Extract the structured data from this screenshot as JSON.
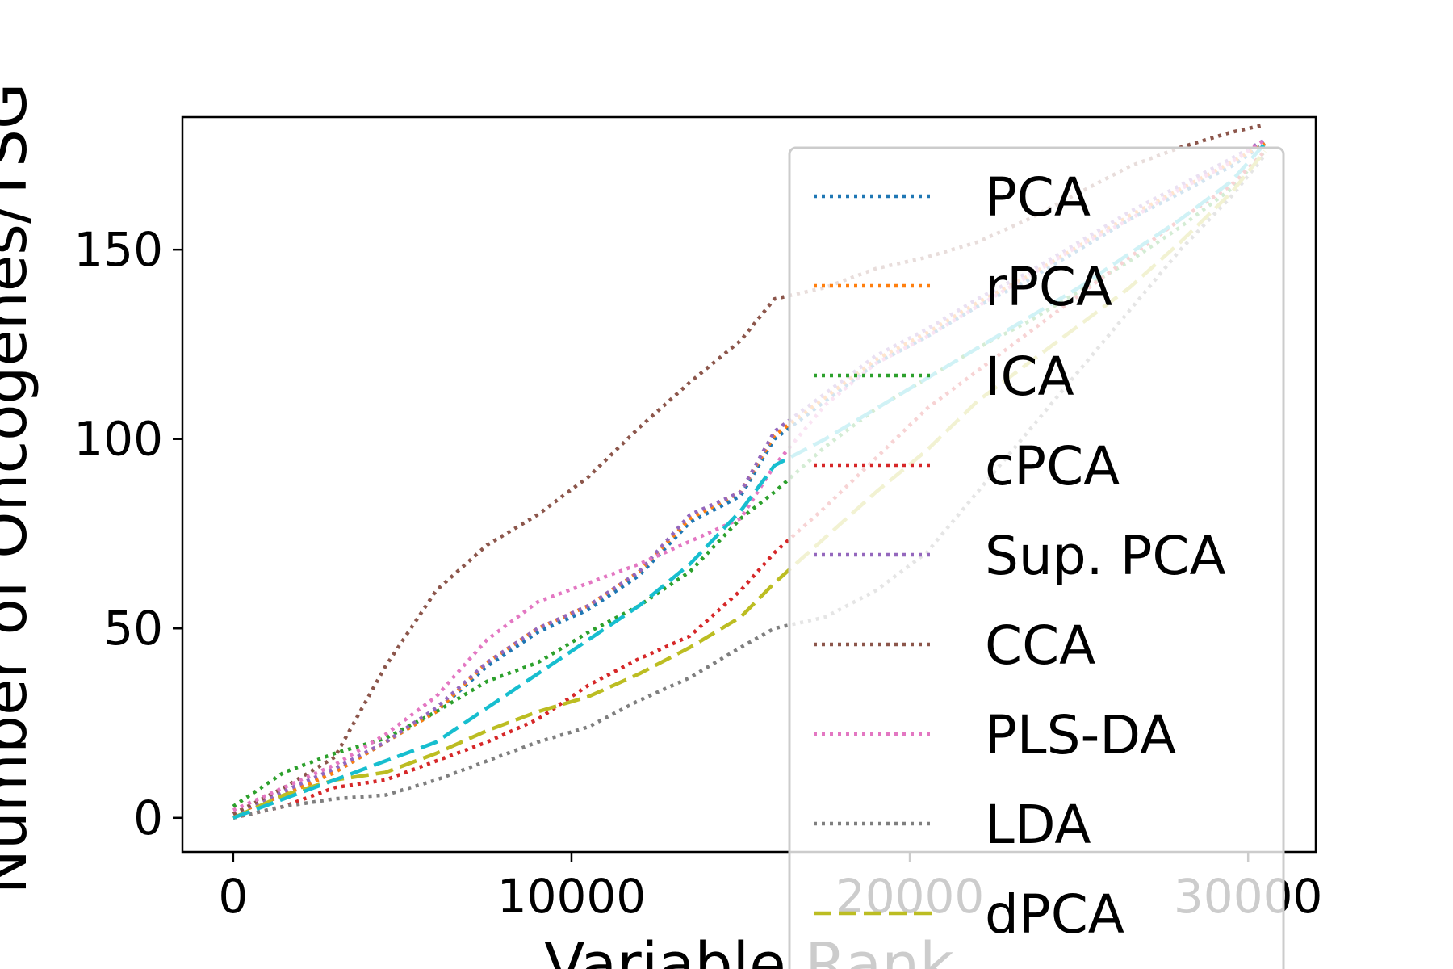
{
  "chart_data": {
    "type": "line",
    "title": "",
    "xlabel": "Variable Rank",
    "ylabel": "Number of Oncogenes/TSG",
    "xlim": [
      -1500,
      32000
    ],
    "ylim": [
      -9,
      185
    ],
    "xticks": [
      0,
      10000,
      20000,
      30000
    ],
    "yticks": [
      0,
      50,
      100,
      150
    ],
    "grid": false,
    "legend_position": "right",
    "series": [
      {
        "name": "PCA",
        "color": "#1f77b4",
        "dash": "dotted",
        "x": [
          0,
          1500,
          3000,
          4500,
          6000,
          7500,
          9000,
          10500,
          12000,
          13500,
          15000,
          16000,
          17500,
          19000,
          20500,
          22000,
          23500,
          25000,
          26500,
          28000,
          29500,
          30500
        ],
        "values": [
          1,
          6,
          12,
          20,
          28,
          40,
          49,
          55,
          64,
          78,
          85,
          100,
          110,
          120,
          127,
          135,
          142,
          150,
          158,
          165,
          172,
          178
        ]
      },
      {
        "name": "rPCA",
        "color": "#ff7f0e",
        "dash": "dotted",
        "x": [
          0,
          1500,
          3000,
          4500,
          6000,
          7500,
          9000,
          10500,
          12000,
          13500,
          15000,
          16000,
          17500,
          19000,
          20500,
          22000,
          23500,
          25000,
          26500,
          28000,
          29500,
          30500
        ],
        "values": [
          1,
          6,
          12,
          20,
          28,
          41,
          50,
          56,
          65,
          79,
          86,
          101,
          111,
          121,
          128,
          136,
          143,
          151,
          159,
          166,
          173,
          178
        ]
      },
      {
        "name": "ICA",
        "color": "#2ca02c",
        "dash": "dotted",
        "x": [
          0,
          1500,
          3000,
          4500,
          6000,
          7500,
          9000,
          10500,
          12000,
          13500,
          15000,
          16000,
          17500,
          19000,
          20500,
          22000,
          23500,
          25000,
          26500,
          28000,
          29500,
          30500
        ],
        "values": [
          3,
          12,
          17,
          21,
          28,
          36,
          41,
          49,
          56,
          65,
          79,
          86,
          98,
          108,
          116,
          124,
          131,
          139,
          147,
          156,
          166,
          176
        ]
      },
      {
        "name": "cPCA",
        "color": "#d62728",
        "dash": "dotted",
        "x": [
          0,
          1500,
          3000,
          4500,
          6000,
          7500,
          9000,
          10500,
          12000,
          13500,
          15000,
          16000,
          17500,
          19000,
          20500,
          22000,
          23500,
          25000,
          26500,
          28000,
          29500,
          30500
        ],
        "values": [
          0,
          3,
          8,
          10,
          15,
          20,
          26,
          35,
          42,
          48,
          60,
          70,
          82,
          95,
          108,
          118,
          128,
          138,
          148,
          158,
          167,
          176
        ]
      },
      {
        "name": "Sup. PCA",
        "color": "#9467bd",
        "dash": "dotted",
        "x": [
          0,
          1500,
          3000,
          4500,
          6000,
          7500,
          9000,
          10500,
          12000,
          13500,
          15000,
          16000,
          17500,
          19000,
          20500,
          22000,
          23500,
          25000,
          26500,
          28000,
          29500,
          30500
        ],
        "values": [
          1,
          7,
          13,
          20,
          29,
          41,
          50,
          56,
          65,
          80,
          86,
          102,
          112,
          122,
          129,
          137,
          144,
          152,
          160,
          167,
          174,
          179
        ]
      },
      {
        "name": "CCA",
        "color": "#8c564b",
        "dash": "dotted",
        "x": [
          0,
          1500,
          3000,
          4500,
          6000,
          7500,
          9000,
          10500,
          12000,
          13500,
          15000,
          16000,
          17500,
          19000,
          20500,
          22000,
          23500,
          25000,
          26500,
          28000,
          29500,
          30500
        ],
        "values": [
          1,
          8,
          16,
          40,
          60,
          72,
          80,
          90,
          103,
          115,
          126,
          137,
          140,
          145,
          148,
          152,
          158,
          165,
          172,
          177,
          181,
          183
        ]
      },
      {
        "name": "PLS-DA",
        "color": "#e377c2",
        "dash": "dotted",
        "x": [
          0,
          1500,
          3000,
          4500,
          6000,
          7500,
          9000,
          10500,
          12000,
          13500,
          15000,
          16000,
          17500,
          19000,
          20500,
          22000,
          23500,
          25000,
          26500,
          28000,
          29500,
          30500
        ],
        "values": [
          2,
          8,
          14,
          22,
          32,
          47,
          57,
          62,
          67,
          73,
          79,
          93,
          109,
          120,
          127,
          135,
          143,
          151,
          158,
          166,
          173,
          179
        ]
      },
      {
        "name": "LDA",
        "color": "#7f7f7f",
        "dash": "dotted",
        "x": [
          0,
          1500,
          3000,
          4500,
          6000,
          7500,
          9000,
          10500,
          12000,
          13500,
          15000,
          16000,
          17500,
          19000,
          20500,
          22000,
          23500,
          25000,
          26500,
          28000,
          29500,
          30500
        ],
        "values": [
          0,
          3,
          5,
          6,
          10,
          15,
          20,
          24,
          31,
          37,
          45,
          50,
          53,
          60,
          70,
          86,
          102,
          118,
          134,
          150,
          164,
          175
        ]
      },
      {
        "name": "dPCA",
        "color": "#bcbd22",
        "dash": "dashed",
        "x": [
          0,
          1500,
          3000,
          4500,
          6000,
          7500,
          9000,
          10500,
          12000,
          13500,
          15000,
          16000,
          17500,
          19000,
          20500,
          22000,
          23500,
          25000,
          26500,
          28000,
          29500,
          30500
        ],
        "values": [
          0,
          6,
          10,
          12,
          17,
          23,
          28,
          32,
          38,
          45,
          53,
          62,
          74,
          86,
          97,
          110,
          120,
          130,
          140,
          152,
          165,
          176
        ]
      },
      {
        "name": "",
        "color": "#17becf",
        "dash": "dashed",
        "x": [
          0,
          1500,
          3000,
          4500,
          6000,
          7500,
          9000,
          10500,
          12000,
          13500,
          15000,
          16000,
          17500,
          19000,
          20500,
          22000,
          23500,
          25000,
          26500,
          28000,
          29500,
          30500
        ],
        "values": [
          0,
          5,
          10,
          15,
          20,
          29,
          38,
          47,
          56,
          67,
          81,
          93,
          100,
          108,
          116,
          124,
          132,
          140,
          149,
          158,
          168,
          178
        ]
      }
    ]
  }
}
